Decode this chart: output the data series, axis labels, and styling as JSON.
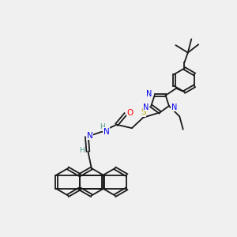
{
  "bg_color": "#f0f0f0",
  "bond_color": "#1a1a1a",
  "N_color": "#0000ee",
  "O_color": "#ff0000",
  "S_color": "#bbaa00",
  "H_color": "#4a9a8a",
  "line_width": 1.3,
  "figsize": [
    3.0,
    3.0
  ],
  "dpi": 100,
  "xlim": [
    0,
    10
  ],
  "ylim": [
    0,
    10
  ]
}
